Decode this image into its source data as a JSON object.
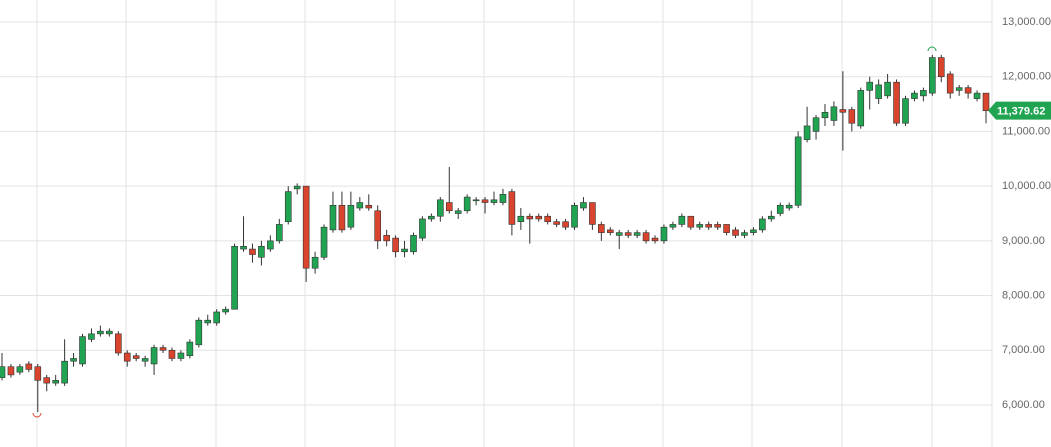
{
  "chart_data": {
    "type": "candlestick",
    "up_color": "#21a452",
    "down_color": "#d8442e",
    "ylim": [
      5232,
      13402
    ],
    "yticks": [
      {
        "value": 6000,
        "label": "6,000.00"
      },
      {
        "value": 7000,
        "label": "7,000.00"
      },
      {
        "value": 8000,
        "label": "8,000.00"
      },
      {
        "value": 9000,
        "label": "9,000.00"
      },
      {
        "value": 10000,
        "label": "10,000.00"
      },
      {
        "value": 11000,
        "label": "11,000.00"
      },
      {
        "value": 12000,
        "label": "12,000.00"
      },
      {
        "value": 13000,
        "label": "13,000.00"
      }
    ],
    "grid": true,
    "last_price": {
      "value": 11379.62,
      "label": "11,379.62"
    },
    "candles": [
      {
        "o": 6500,
        "h": 6950,
        "l": 6450,
        "c": 6700
      },
      {
        "o": 6700,
        "h": 6750,
        "l": 6500,
        "c": 6550
      },
      {
        "o": 6600,
        "h": 6750,
        "l": 6550,
        "c": 6700
      },
      {
        "o": 6750,
        "h": 6800,
        "l": 6600,
        "c": 6650
      },
      {
        "o": 6700,
        "h": 6750,
        "l": 5870,
        "c": 6450
      },
      {
        "o": 6500,
        "h": 6550,
        "l": 6250,
        "c": 6400
      },
      {
        "o": 6400,
        "h": 6550,
        "l": 6350,
        "c": 6450
      },
      {
        "o": 6400,
        "h": 7200,
        "l": 6350,
        "c": 6800
      },
      {
        "o": 6800,
        "h": 6950,
        "l": 6700,
        "c": 6850
      },
      {
        "o": 6750,
        "h": 7300,
        "l": 6700,
        "c": 7250
      },
      {
        "o": 7200,
        "h": 7400,
        "l": 7150,
        "c": 7300
      },
      {
        "o": 7300,
        "h": 7450,
        "l": 7250,
        "c": 7350
      },
      {
        "o": 7300,
        "h": 7400,
        "l": 7250,
        "c": 7350
      },
      {
        "o": 7300,
        "h": 7350,
        "l": 6900,
        "c": 6950
      },
      {
        "o": 6950,
        "h": 7000,
        "l": 6700,
        "c": 6800
      },
      {
        "o": 6900,
        "h": 6950,
        "l": 6800,
        "c": 6850
      },
      {
        "o": 6800,
        "h": 6900,
        "l": 6700,
        "c": 6850
      },
      {
        "o": 6750,
        "h": 7100,
        "l": 6550,
        "c": 7050
      },
      {
        "o": 7050,
        "h": 7100,
        "l": 6950,
        "c": 7000
      },
      {
        "o": 7000,
        "h": 7050,
        "l": 6800,
        "c": 6850
      },
      {
        "o": 6850,
        "h": 7000,
        "l": 6800,
        "c": 6950
      },
      {
        "o": 6900,
        "h": 7200,
        "l": 6850,
        "c": 7150
      },
      {
        "o": 7100,
        "h": 7600,
        "l": 7050,
        "c": 7550
      },
      {
        "o": 7500,
        "h": 7650,
        "l": 7450,
        "c": 7550
      },
      {
        "o": 7500,
        "h": 7750,
        "l": 7450,
        "c": 7700
      },
      {
        "o": 7700,
        "h": 7800,
        "l": 7650,
        "c": 7750
      },
      {
        "o": 7750,
        "h": 8950,
        "l": 7750,
        "c": 8900
      },
      {
        "o": 8850,
        "h": 9450,
        "l": 8800,
        "c": 8900
      },
      {
        "o": 8850,
        "h": 8950,
        "l": 8600,
        "c": 8750
      },
      {
        "o": 8700,
        "h": 9000,
        "l": 8550,
        "c": 8900
      },
      {
        "o": 8850,
        "h": 9100,
        "l": 8800,
        "c": 9000
      },
      {
        "o": 9000,
        "h": 9400,
        "l": 8950,
        "c": 9300
      },
      {
        "o": 9350,
        "h": 10000,
        "l": 9300,
        "c": 9900
      },
      {
        "o": 9950,
        "h": 10050,
        "l": 9850,
        "c": 10000
      },
      {
        "o": 10000,
        "h": 10000,
        "l": 8250,
        "c": 8500
      },
      {
        "o": 8500,
        "h": 8800,
        "l": 8400,
        "c": 8700
      },
      {
        "o": 8700,
        "h": 9300,
        "l": 8650,
        "c": 9250
      },
      {
        "o": 9200,
        "h": 9900,
        "l": 9150,
        "c": 9650
      },
      {
        "o": 9650,
        "h": 9900,
        "l": 9150,
        "c": 9200
      },
      {
        "o": 9250,
        "h": 9900,
        "l": 9200,
        "c": 9650
      },
      {
        "o": 9600,
        "h": 9800,
        "l": 9550,
        "c": 9700
      },
      {
        "o": 9650,
        "h": 9850,
        "l": 9550,
        "c": 9600
      },
      {
        "o": 9550,
        "h": 9650,
        "l": 8850,
        "c": 9000
      },
      {
        "o": 9100,
        "h": 9200,
        "l": 8900,
        "c": 9000
      },
      {
        "o": 9050,
        "h": 9100,
        "l": 8700,
        "c": 8800
      },
      {
        "o": 8800,
        "h": 9000,
        "l": 8700,
        "c": 8850
      },
      {
        "o": 8800,
        "h": 9150,
        "l": 8750,
        "c": 9100
      },
      {
        "o": 9050,
        "h": 9450,
        "l": 9000,
        "c": 9400
      },
      {
        "o": 9400,
        "h": 9500,
        "l": 9350,
        "c": 9450
      },
      {
        "o": 9450,
        "h": 9800,
        "l": 9350,
        "c": 9750
      },
      {
        "o": 9700,
        "h": 10350,
        "l": 9500,
        "c": 9550
      },
      {
        "o": 9500,
        "h": 9600,
        "l": 9400,
        "c": 9550
      },
      {
        "o": 9550,
        "h": 9850,
        "l": 9500,
        "c": 9800
      },
      {
        "o": 9750,
        "h": 9800,
        "l": 9650,
        "c": 9750
      },
      {
        "o": 9750,
        "h": 9800,
        "l": 9500,
        "c": 9700
      },
      {
        "o": 9700,
        "h": 9900,
        "l": 9650,
        "c": 9750
      },
      {
        "o": 9700,
        "h": 9950,
        "l": 9650,
        "c": 9850
      },
      {
        "o": 9900,
        "h": 9950,
        "l": 9100,
        "c": 9300
      },
      {
        "o": 9350,
        "h": 9600,
        "l": 9200,
        "c": 9450
      },
      {
        "o": 9450,
        "h": 9500,
        "l": 8950,
        "c": 9400
      },
      {
        "o": 9450,
        "h": 9500,
        "l": 9350,
        "c": 9400
      },
      {
        "o": 9450,
        "h": 9500,
        "l": 9300,
        "c": 9350
      },
      {
        "o": 9350,
        "h": 9400,
        "l": 9250,
        "c": 9300
      },
      {
        "o": 9350,
        "h": 9400,
        "l": 9200,
        "c": 9250
      },
      {
        "o": 9250,
        "h": 9700,
        "l": 9200,
        "c": 9650
      },
      {
        "o": 9600,
        "h": 9800,
        "l": 9550,
        "c": 9700
      },
      {
        "o": 9700,
        "h": 9700,
        "l": 9200,
        "c": 9300
      },
      {
        "o": 9300,
        "h": 9350,
        "l": 9000,
        "c": 9150
      },
      {
        "o": 9200,
        "h": 9250,
        "l": 9100,
        "c": 9150
      },
      {
        "o": 9100,
        "h": 9200,
        "l": 8850,
        "c": 9150
      },
      {
        "o": 9150,
        "h": 9200,
        "l": 9050,
        "c": 9100
      },
      {
        "o": 9100,
        "h": 9200,
        "l": 9050,
        "c": 9150
      },
      {
        "o": 9150,
        "h": 9200,
        "l": 8950,
        "c": 9000
      },
      {
        "o": 9050,
        "h": 9100,
        "l": 8950,
        "c": 9000
      },
      {
        "o": 9000,
        "h": 9300,
        "l": 8950,
        "c": 9250
      },
      {
        "o": 9250,
        "h": 9350,
        "l": 9200,
        "c": 9300
      },
      {
        "o": 9300,
        "h": 9500,
        "l": 9250,
        "c": 9450
      },
      {
        "o": 9450,
        "h": 9450,
        "l": 9200,
        "c": 9250
      },
      {
        "o": 9250,
        "h": 9350,
        "l": 9200,
        "c": 9300
      },
      {
        "o": 9300,
        "h": 9350,
        "l": 9200,
        "c": 9250
      },
      {
        "o": 9300,
        "h": 9350,
        "l": 9200,
        "c": 9250
      },
      {
        "o": 9300,
        "h": 9300,
        "l": 9100,
        "c": 9150
      },
      {
        "o": 9200,
        "h": 9250,
        "l": 9050,
        "c": 9100
      },
      {
        "o": 9100,
        "h": 9200,
        "l": 9050,
        "c": 9150
      },
      {
        "o": 9150,
        "h": 9250,
        "l": 9100,
        "c": 9200
      },
      {
        "o": 9200,
        "h": 9450,
        "l": 9150,
        "c": 9400
      },
      {
        "o": 9400,
        "h": 9550,
        "l": 9350,
        "c": 9450
      },
      {
        "o": 9500,
        "h": 9700,
        "l": 9450,
        "c": 9650
      },
      {
        "o": 9600,
        "h": 9700,
        "l": 9550,
        "c": 9650
      },
      {
        "o": 9650,
        "h": 11000,
        "l": 9600,
        "c": 10900
      },
      {
        "o": 10850,
        "h": 11450,
        "l": 10800,
        "c": 11100
      },
      {
        "o": 11000,
        "h": 11300,
        "l": 10850,
        "c": 11250
      },
      {
        "o": 11250,
        "h": 11500,
        "l": 11100,
        "c": 11350
      },
      {
        "o": 11200,
        "h": 11550,
        "l": 11100,
        "c": 11450
      },
      {
        "o": 11400,
        "h": 12100,
        "l": 10650,
        "c": 11350
      },
      {
        "o": 11400,
        "h": 11450,
        "l": 11000,
        "c": 11150
      },
      {
        "o": 11100,
        "h": 11800,
        "l": 11050,
        "c": 11750
      },
      {
        "o": 11750,
        "h": 12000,
        "l": 11400,
        "c": 11900
      },
      {
        "o": 11600,
        "h": 11950,
        "l": 11500,
        "c": 11850
      },
      {
        "o": 11650,
        "h": 12050,
        "l": 11600,
        "c": 11900
      },
      {
        "o": 11900,
        "h": 11950,
        "l": 11100,
        "c": 11150
      },
      {
        "o": 11150,
        "h": 11650,
        "l": 11100,
        "c": 11600
      },
      {
        "o": 11600,
        "h": 11750,
        "l": 11550,
        "c": 11700
      },
      {
        "o": 11650,
        "h": 11800,
        "l": 11550,
        "c": 11750
      },
      {
        "o": 11700,
        "h": 12400,
        "l": 11650,
        "c": 12350
      },
      {
        "o": 12350,
        "h": 12400,
        "l": 11900,
        "c": 12000
      },
      {
        "o": 12050,
        "h": 12100,
        "l": 11600,
        "c": 11700
      },
      {
        "o": 11750,
        "h": 11850,
        "l": 11650,
        "c": 11800
      },
      {
        "o": 11800,
        "h": 11850,
        "l": 11600,
        "c": 11700
      },
      {
        "o": 11600,
        "h": 11750,
        "l": 11550,
        "c": 11700
      },
      {
        "o": 11700,
        "h": 11700,
        "l": 11150,
        "c": 11380
      }
    ]
  }
}
